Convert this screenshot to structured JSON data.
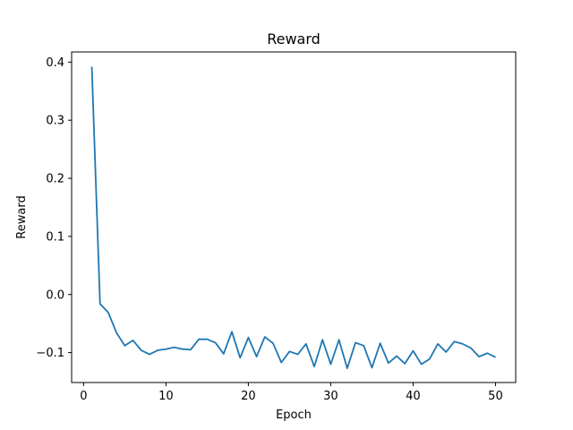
{
  "chart_data": {
    "type": "line",
    "title": "Reward",
    "xlabel": "Epoch",
    "ylabel": "Reward",
    "xlim": [
      -1.45,
      52.45
    ],
    "ylim": [
      -0.1515,
      0.4175
    ],
    "xticks": [
      0,
      10,
      20,
      30,
      40,
      50
    ],
    "yticks": [
      -0.1,
      0.0,
      0.1,
      0.2,
      0.3,
      0.4
    ],
    "ytick_labels": [
      "−0.1",
      "0.0",
      "0.1",
      "0.2",
      "0.3",
      "0.4"
    ],
    "grid": false,
    "series": [
      {
        "color": "#1f77b4",
        "x": [
          1,
          2,
          3,
          4,
          5,
          6,
          7,
          8,
          9,
          10,
          11,
          12,
          13,
          14,
          15,
          16,
          17,
          18,
          19,
          20,
          21,
          22,
          23,
          24,
          25,
          26,
          27,
          28,
          29,
          30,
          31,
          32,
          33,
          34,
          35,
          36,
          37,
          38,
          39,
          40,
          41,
          42,
          43,
          44,
          45,
          46,
          47,
          48,
          49,
          50
        ],
        "y": [
          0.392,
          -0.016,
          -0.031,
          -0.066,
          -0.088,
          -0.079,
          -0.096,
          -0.103,
          -0.096,
          -0.094,
          -0.091,
          -0.094,
          -0.095,
          -0.077,
          -0.077,
          -0.083,
          -0.102,
          -0.064,
          -0.109,
          -0.074,
          -0.107,
          -0.073,
          -0.084,
          -0.117,
          -0.098,
          -0.103,
          -0.085,
          -0.124,
          -0.078,
          -0.12,
          -0.078,
          -0.127,
          -0.083,
          -0.088,
          -0.126,
          -0.084,
          -0.118,
          -0.106,
          -0.119,
          -0.097,
          -0.12,
          -0.111,
          -0.085,
          -0.099,
          -0.081,
          -0.085,
          -0.092,
          -0.107,
          -0.101,
          -0.108
        ]
      }
    ]
  }
}
